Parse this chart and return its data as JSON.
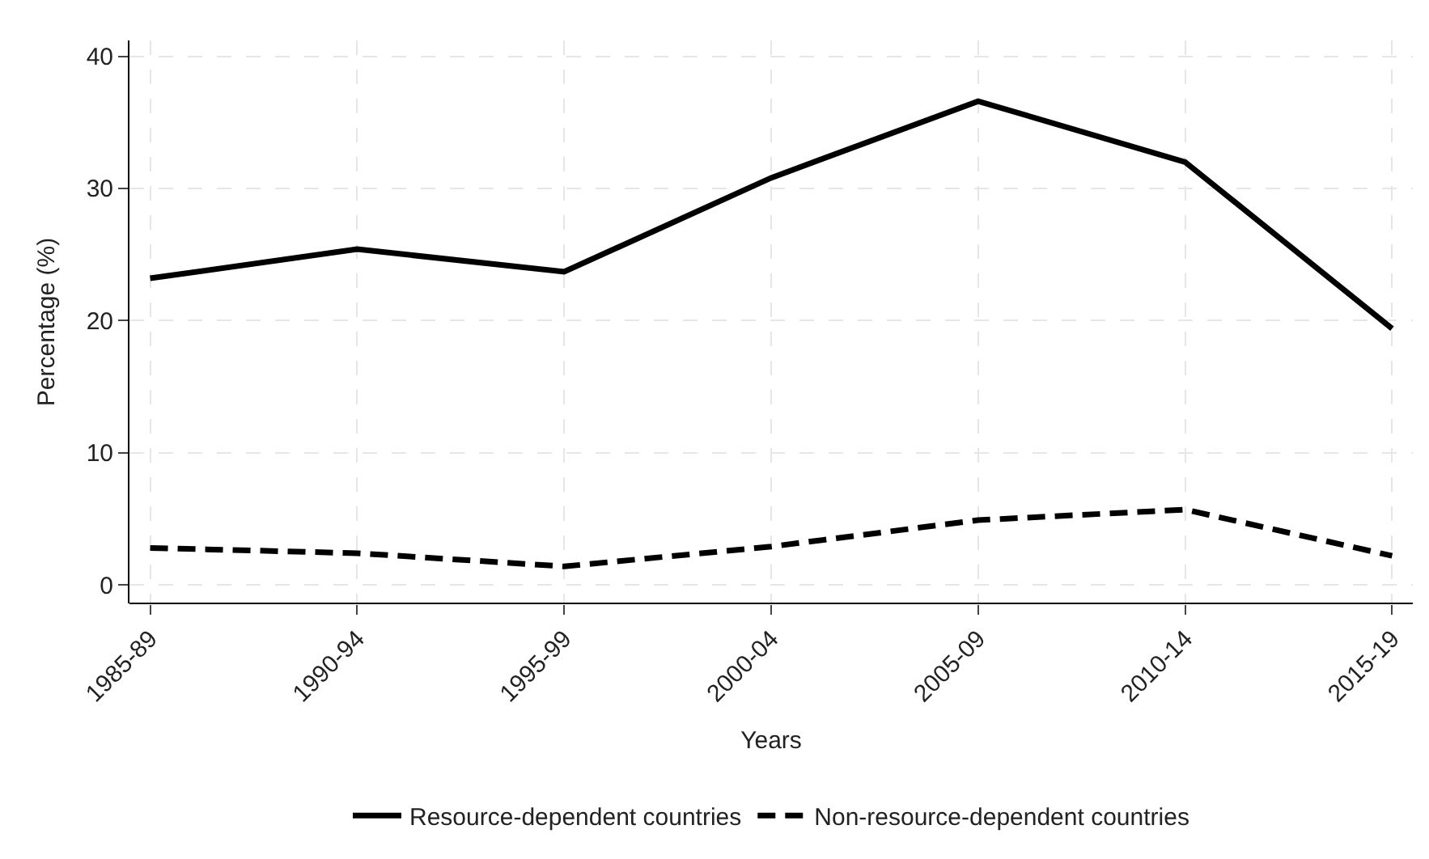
{
  "chart_data": {
    "type": "line",
    "xlabel": "Years",
    "ylabel": "Percentage (%)",
    "categories": [
      "1985-89",
      "1990-94",
      "1995-99",
      "2000-04",
      "2005-09",
      "2010-14",
      "2015-19"
    ],
    "series": [
      {
        "name": "Resource-dependent countries",
        "color": "#000000",
        "line_style": "solid",
        "values": [
          23.2,
          25.4,
          23.7,
          30.8,
          36.6,
          32.0,
          19.4
        ]
      },
      {
        "name": "Non-resource-dependent countries",
        "color": "#000000",
        "line_style": "dashed",
        "values": [
          2.8,
          2.4,
          1.4,
          2.9,
          4.9,
          5.7,
          2.2
        ]
      }
    ],
    "ylim": [
      -1.4,
      41.2
    ],
    "yticks": [
      0,
      10,
      20,
      30,
      40
    ],
    "grid": true,
    "legend": "bottom",
    "marker": "none"
  }
}
